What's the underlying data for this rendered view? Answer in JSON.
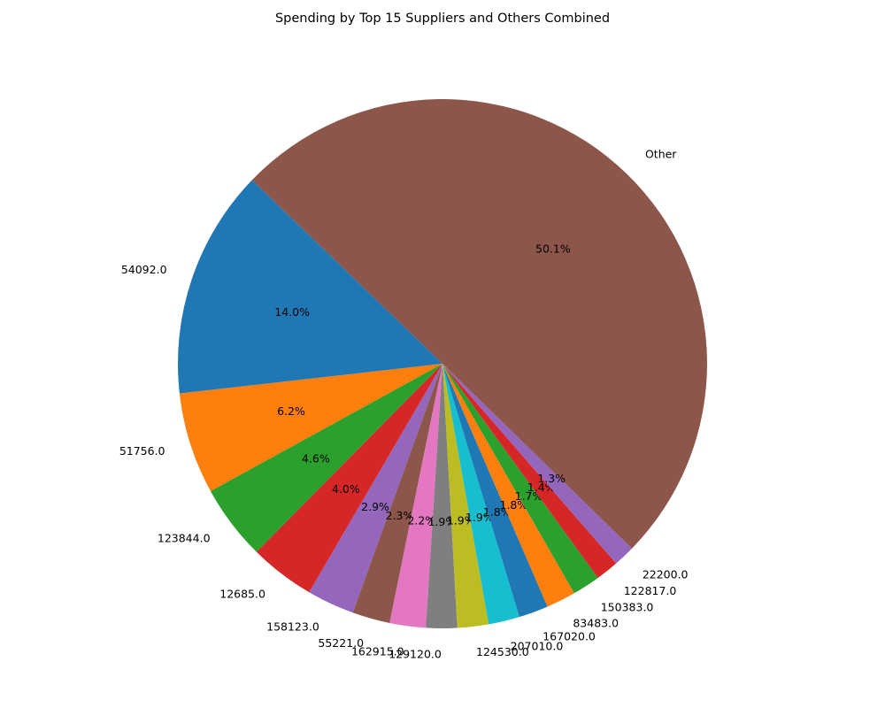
{
  "chart_data": {
    "type": "pie",
    "title": "Spending by Top 15 Suppliers and Others Combined",
    "slices": [
      {
        "label": "Other",
        "percent": 50.1,
        "pct_label": "50.1%",
        "color": "#8c564b"
      },
      {
        "label": "54092.0",
        "percent": 14.0,
        "pct_label": "14.0%",
        "color": "#1f77b4"
      },
      {
        "label": "51756.0",
        "percent": 6.2,
        "pct_label": "6.2%",
        "color": "#ff7f0e"
      },
      {
        "label": "123844.0",
        "percent": 4.6,
        "pct_label": "4.6%",
        "color": "#2ca02c"
      },
      {
        "label": "12685.0",
        "percent": 4.0,
        "pct_label": "4.0%",
        "color": "#d62728"
      },
      {
        "label": "158123.0",
        "percent": 2.9,
        "pct_label": "2.9%",
        "color": "#9467bd"
      },
      {
        "label": "55221.0",
        "percent": 2.3,
        "pct_label": "2.3%",
        "color": "#8c564b"
      },
      {
        "label": "162915.0",
        "percent": 2.2,
        "pct_label": "2.2%",
        "color": "#e377c2"
      },
      {
        "label": "129120.0",
        "percent": 1.9,
        "pct_label": "1.9%",
        "color": "#7f7f7f"
      },
      {
        "label": "124530.0",
        "percent": 1.9,
        "pct_label": "1.9%",
        "color": "#bcbd22"
      },
      {
        "label": "207010.0",
        "percent": 1.9,
        "pct_label": "1.9%",
        "color": "#17becf"
      },
      {
        "label": "167020.0",
        "percent": 1.8,
        "pct_label": "1.8%",
        "color": "#1f77b4"
      },
      {
        "label": "83483.0",
        "percent": 1.8,
        "pct_label": "1.8%",
        "color": "#ff7f0e"
      },
      {
        "label": "150383.0",
        "percent": 1.7,
        "pct_label": "1.7%",
        "color": "#2ca02c"
      },
      {
        "label": "122817.0",
        "percent": 1.4,
        "pct_label": "1.4%",
        "color": "#d62728"
      },
      {
        "label": "22200.0",
        "percent": 1.3,
        "pct_label": "1.3%",
        "color": "#9467bd"
      }
    ]
  }
}
